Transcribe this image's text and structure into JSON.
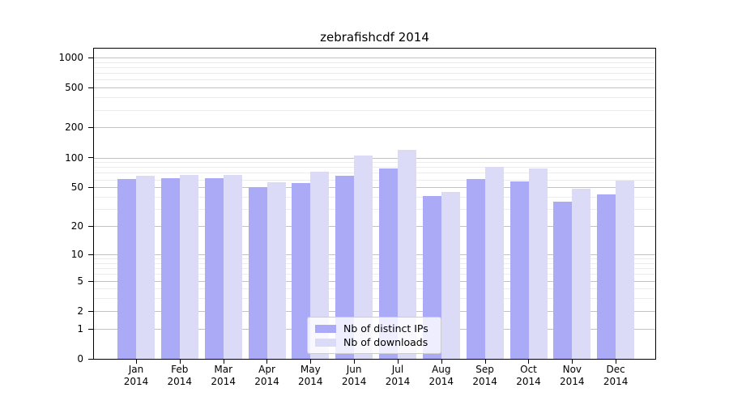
{
  "title": "zebrafishcdf 2014",
  "legend": {
    "items": [
      {
        "label": "Nb of distinct IPs",
        "color": "#aaaaf7"
      },
      {
        "label": "Nb of downloads",
        "color": "#dbdbf8"
      }
    ]
  },
  "chart_data": {
    "type": "bar",
    "title": "zebrafishcdf 2014",
    "categories": [
      "Jan 2014",
      "Feb 2014",
      "Mar 2014",
      "Apr 2014",
      "May 2014",
      "Jun 2014",
      "Jul 2014",
      "Aug 2014",
      "Sep 2014",
      "Oct 2014",
      "Nov 2014",
      "Dec 2014"
    ],
    "months": [
      "Jan",
      "Feb",
      "Mar",
      "Apr",
      "May",
      "Jun",
      "Jul",
      "Aug",
      "Sep",
      "Oct",
      "Nov",
      "Dec"
    ],
    "year": "2014",
    "series": [
      {
        "name": "Nb of distinct IPs",
        "color": "#aaaaf7",
        "values": [
          61,
          62,
          62,
          50,
          55,
          65,
          78,
          41,
          61,
          57,
          36,
          42
        ]
      },
      {
        "name": "Nb of downloads",
        "color": "#dbdbf8",
        "values": [
          66,
          67,
          67,
          56,
          72,
          104,
          120,
          45,
          80,
          78,
          48,
          59
        ]
      }
    ],
    "y_scale": "log10(value+1)",
    "y_ticks": [
      0,
      1,
      2,
      5,
      10,
      20,
      50,
      100,
      200,
      500,
      1000
    ],
    "y_minor_ticks": [
      3,
      4,
      6,
      7,
      8,
      9,
      30,
      40,
      60,
      70,
      80,
      90,
      300,
      400,
      600,
      700,
      800,
      900
    ],
    "ylim": [
      0,
      1230
    ],
    "grid": true,
    "legend_position": "lower center"
  }
}
